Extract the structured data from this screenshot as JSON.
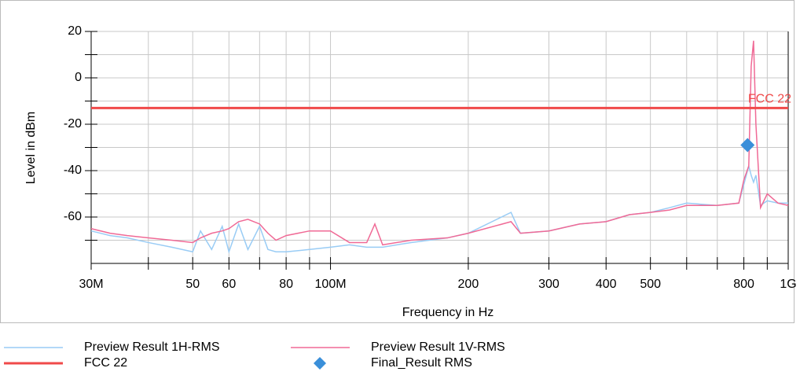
{
  "chart_data": {
    "type": "line",
    "xlabel": "Frequency in Hz",
    "ylabel": "Level in dBm",
    "log_x": true,
    "grid": true,
    "xlim": [
      30000000.0,
      1000000000.0
    ],
    "ylim": [
      -80,
      20
    ],
    "xticks": [
      {
        "value": 30000000.0,
        "label": "30M"
      },
      {
        "value": 50000000.0,
        "label": "50"
      },
      {
        "value": 60000000.0,
        "label": "60"
      },
      {
        "value": 80000000.0,
        "label": "80"
      },
      {
        "value": 100000000.0,
        "label": "100M"
      },
      {
        "value": 200000000.0,
        "label": "200"
      },
      {
        "value": 300000000.0,
        "label": "300"
      },
      {
        "value": 400000000.0,
        "label": "400"
      },
      {
        "value": 500000000.0,
        "label": "500"
      },
      {
        "value": 800000000.0,
        "label": "800"
      },
      {
        "value": 1000000000.0,
        "label": "1G"
      }
    ],
    "xminor": [
      40000000.0,
      70000000.0,
      90000000.0,
      600000000.0,
      700000000.0,
      900000000.0
    ],
    "yticks": [
      20,
      0,
      -20,
      -40,
      -60
    ],
    "yminor": [
      10,
      -10,
      -30,
      -50,
      -70
    ],
    "x": [
      30000000.0,
      33000000.0,
      36000000.0,
      40000000.0,
      45000000.0,
      50000000.0,
      52000000.0,
      55000000.0,
      58000000.0,
      60000000.0,
      63000000.0,
      66000000.0,
      70000000.0,
      73000000.0,
      76000000.0,
      80000000.0,
      90000000.0,
      100000000.0,
      110000000.0,
      120000000.0,
      125000000.0,
      130000000.0,
      150000000.0,
      180000000.0,
      200000000.0,
      248000000.0,
      260000000.0,
      300000000.0,
      350000000.0,
      400000000.0,
      450000000.0,
      500000000.0,
      550000000.0,
      600000000.0,
      700000000.0,
      780000000.0,
      800000000.0,
      820000000.0,
      830000000.0,
      840000000.0,
      850000000.0,
      870000000.0,
      900000000.0,
      950000000.0,
      1000000000.0
    ],
    "series": [
      {
        "name": "Preview Result 1H-RMS",
        "color": "#99ccf5",
        "values": [
          -66,
          -68,
          -69,
          -71,
          -73,
          -75,
          -66,
          -74,
          -64,
          -75,
          -63,
          -74,
          -64,
          -74,
          -75,
          -75,
          -74,
          -73,
          -72,
          -73,
          -73,
          -73,
          -71,
          -69,
          -67,
          -58,
          -67,
          -66,
          -63,
          -62,
          -59,
          -58,
          -56,
          -54,
          -55,
          -54,
          -46,
          -38,
          -42,
          -45,
          -42,
          -55,
          -53,
          -54,
          -54
        ]
      },
      {
        "name": "Preview Result 1V-RMS",
        "color": "#f06a96",
        "values": [
          -65,
          -67,
          -68,
          -69,
          -70,
          -71,
          -69,
          -67,
          -66,
          -65,
          -62,
          -61,
          -63,
          -67,
          -70,
          -68,
          -66,
          -66,
          -71,
          -71,
          -63,
          -72,
          -70,
          -69,
          -67,
          -62,
          -67,
          -66,
          -63,
          -62,
          -59,
          -58,
          -57,
          -55,
          -55,
          -54,
          -44,
          -38,
          5,
          16,
          -20,
          -56,
          -50,
          -54,
          -55
        ]
      }
    ],
    "limit": {
      "name": "FCC 22",
      "color": "#f04a4a",
      "value": -13
    },
    "marker": {
      "name": "Final_Result RMS",
      "color": "#3a8fd9",
      "x": 815000000.0,
      "value": -29
    }
  }
}
